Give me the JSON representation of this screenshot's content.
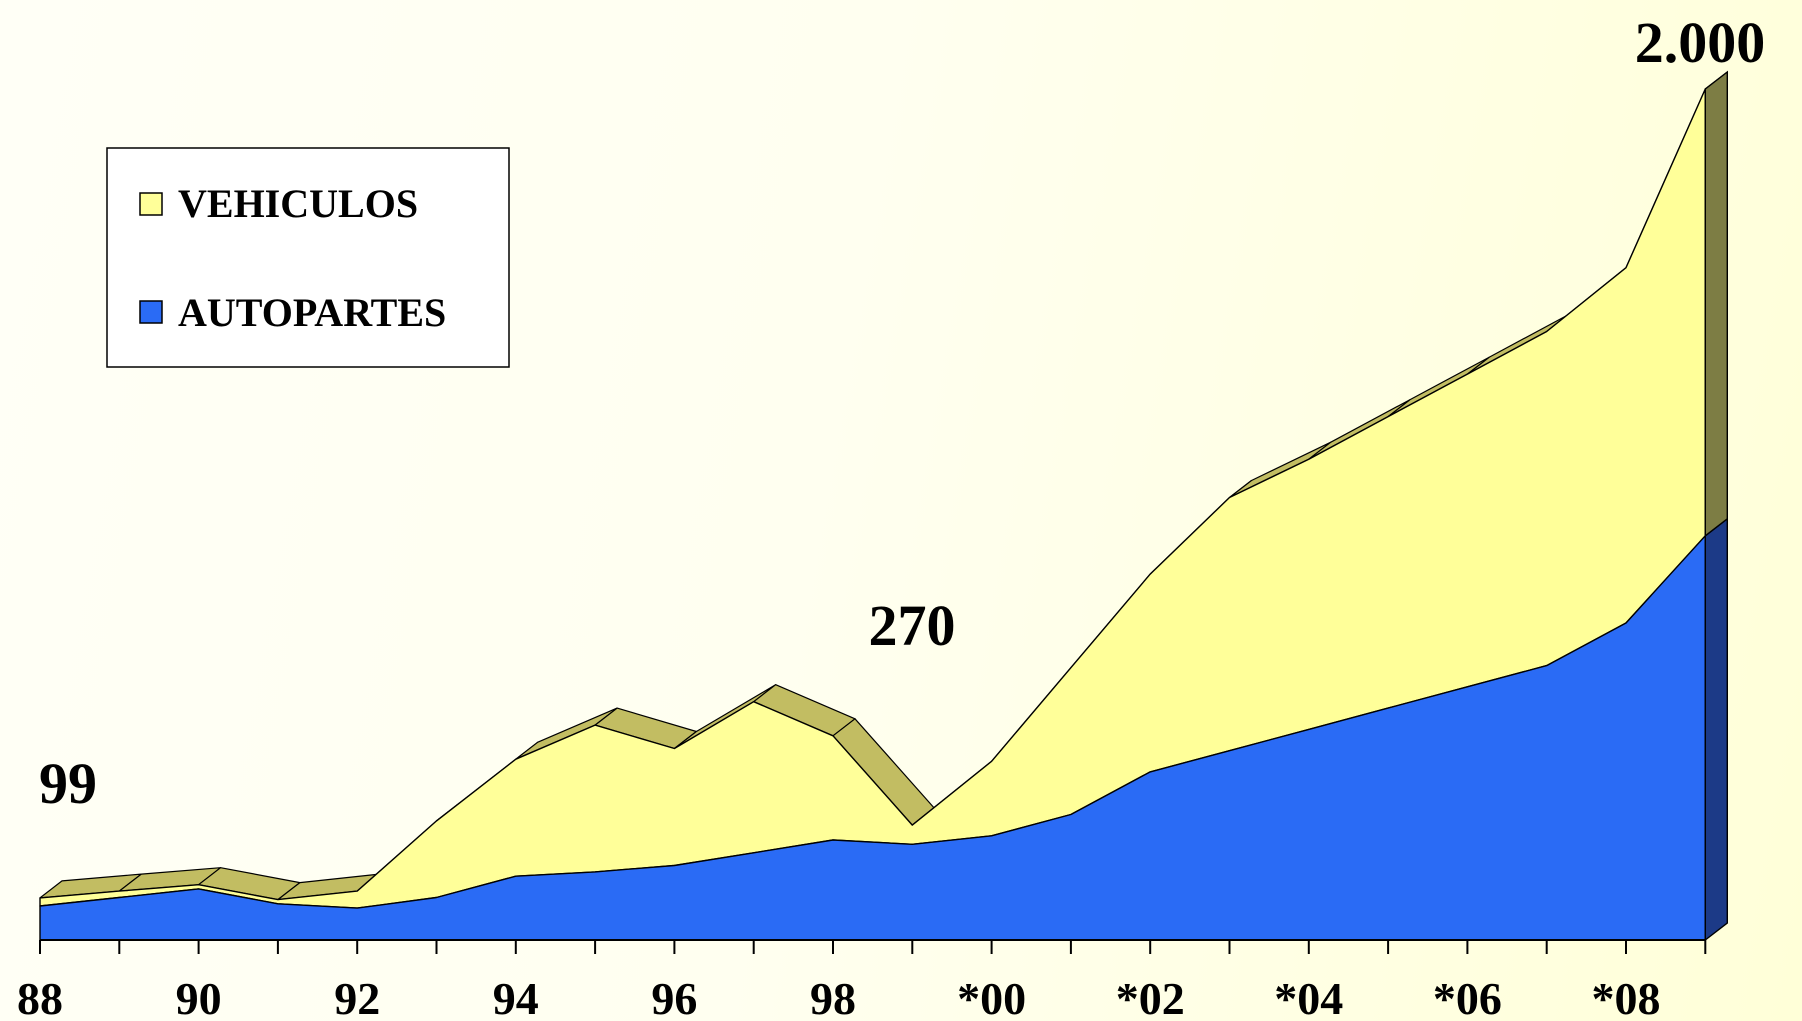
{
  "chart_data": {
    "type": "area",
    "stacked": true,
    "three_d": true,
    "x": [
      1988,
      1989,
      1990,
      1991,
      1992,
      1993,
      1994,
      1995,
      1996,
      1997,
      1998,
      1999,
      2000,
      2001,
      2002,
      2003,
      2004,
      2005,
      2006,
      2007,
      2008,
      2009
    ],
    "x_tick_labels": [
      "88",
      "90",
      "92",
      "94",
      "96",
      "98",
      "*00",
      "*02",
      "*04",
      "*06",
      "*08"
    ],
    "series": [
      {
        "name": "AUTOPARTES",
        "color": "#2a6bf5",
        "side_color": "#1c3a87",
        "values": [
          80,
          100,
          120,
          85,
          75,
          100,
          150,
          160,
          175,
          205,
          235,
          225,
          245,
          295,
          395,
          445,
          495,
          545,
          595,
          645,
          745,
          950
        ]
      },
      {
        "name": "VEHICULOS",
        "color": "#ffff99",
        "side_color": "#7d7d44",
        "values": [
          19,
          15,
          10,
          10,
          40,
          180,
          275,
          345,
          275,
          355,
          245,
          45,
          175,
          345,
          465,
          595,
          635,
          685,
          735,
          785,
          835,
          1050
        ]
      }
    ],
    "annotations": [
      "99",
      "270",
      "2.000"
    ],
    "legend": {
      "position": "top-left",
      "entries": [
        "VEHICULOS",
        "AUTOPARTES"
      ]
    },
    "ylim": [
      0,
      2000
    ],
    "grid": false,
    "top_edge_color": "#c2bd62"
  }
}
